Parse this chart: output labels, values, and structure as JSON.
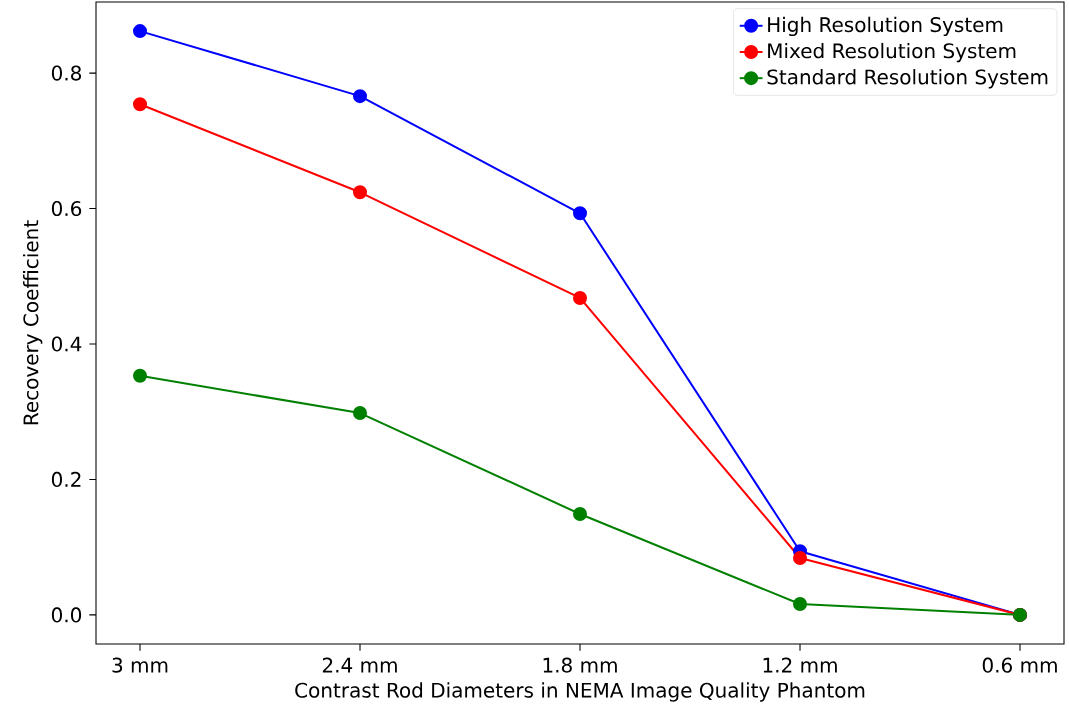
{
  "chart_data": {
    "type": "line",
    "xlabel": "Contrast Rod Diameters in NEMA Image Quality Phantom",
    "ylabel": "Recovery Coefficient",
    "categories": [
      "3 mm",
      "2.4 mm",
      "1.8 mm",
      "1.2 mm",
      "0.6 mm"
    ],
    "series": [
      {
        "name": "High Resolution System",
        "color": "#0000ff",
        "values": [
          0.862,
          0.766,
          0.593,
          0.094,
          0.0
        ]
      },
      {
        "name": "Mixed Resolution System",
        "color": "#ff0000",
        "values": [
          0.754,
          0.624,
          0.468,
          0.084,
          0.0
        ]
      },
      {
        "name": "Standard Resolution System",
        "color": "#008000",
        "values": [
          0.353,
          0.298,
          0.149,
          0.016,
          0.0
        ]
      }
    ],
    "ylim": [
      -0.043,
      0.905
    ],
    "yticks": [
      {
        "value": 0,
        "label": "0.0"
      },
      {
        "value": 0.2,
        "label": "0.2"
      },
      {
        "value": 0.4,
        "label": "0.4"
      },
      {
        "value": 0.6,
        "label": "0.6"
      },
      {
        "value": 0.8,
        "label": "0.8"
      }
    ],
    "legend": "top right",
    "marker": "circle",
    "line_style": "solid",
    "grid": false
  }
}
